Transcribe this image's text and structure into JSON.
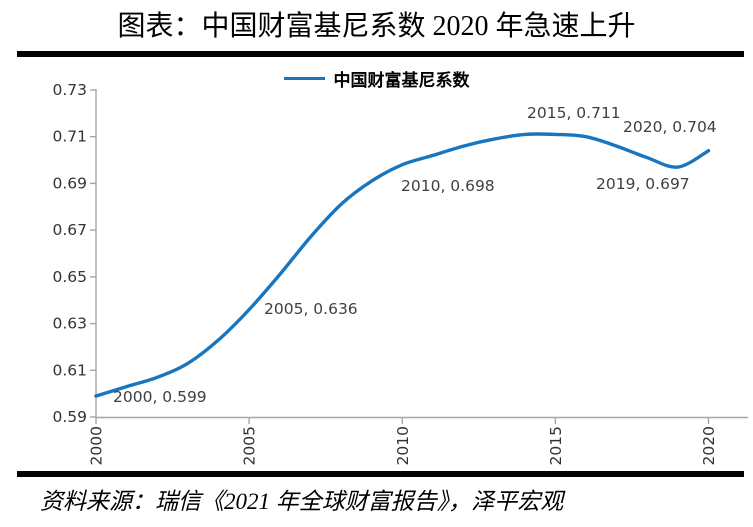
{
  "title": "图表：中国财富基尼系数 2020 年急速上升",
  "legend": {
    "label": "中国财富基尼系数",
    "line_color": "#1976BE"
  },
  "source": "资料来源：瑞信《2021 年全球财富报告》，泽平宏观",
  "chart_data": {
    "type": "line",
    "title": "图表：中国财富基尼系数 2020 年急速上升",
    "series_name": "中国财富基尼系数",
    "x": [
      2000,
      2001,
      2002,
      2003,
      2004,
      2005,
      2006,
      2007,
      2008,
      2009,
      2010,
      2011,
      2012,
      2013,
      2014,
      2015,
      2016,
      2017,
      2018,
      2019,
      2020
    ],
    "values": [
      0.599,
      0.603,
      0.607,
      0.613,
      0.623,
      0.636,
      0.651,
      0.667,
      0.681,
      0.691,
      0.698,
      0.702,
      0.706,
      0.709,
      0.711,
      0.711,
      0.71,
      0.706,
      0.701,
      0.697,
      0.704
    ],
    "labeled_points": [
      {
        "year": 2000,
        "value": 0.599,
        "label": "2000, 0.599"
      },
      {
        "year": 2005,
        "value": 0.636,
        "label": "2005, 0.636"
      },
      {
        "year": 2010,
        "value": 0.698,
        "label": "2010, 0.698"
      },
      {
        "year": 2015,
        "value": 0.711,
        "label": "2015, 0.711"
      },
      {
        "year": 2019,
        "value": 0.697,
        "label": "2019, 0.697"
      },
      {
        "year": 2020,
        "value": 0.704,
        "label": "2020, 0.704"
      }
    ],
    "ylim": [
      0.59,
      0.73
    ],
    "y_tick_labels": [
      "0.73",
      "0.71",
      "0.69",
      "0.67",
      "0.65",
      "0.63",
      "0.61",
      "0.59"
    ],
    "x_tick_labels": [
      "2000",
      "2005",
      "2010",
      "2015",
      "2020"
    ],
    "grid": false,
    "legend_position": "top",
    "line_color": "#1976BE",
    "axis_color": "#A6A6A6",
    "label_color": "#404040"
  }
}
